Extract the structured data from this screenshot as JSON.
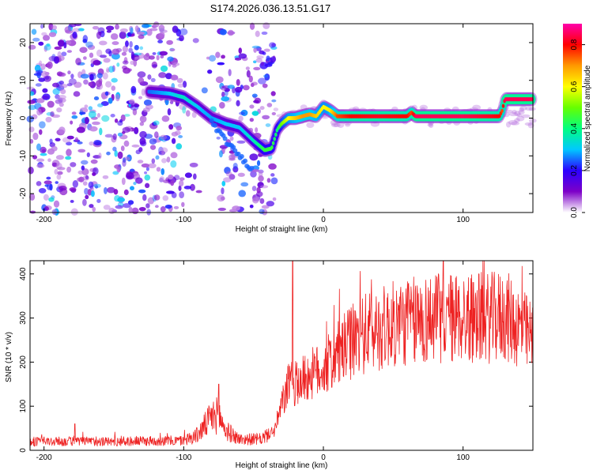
{
  "title": "S174.2026.036.13.51.G17",
  "chart_data": [
    {
      "type": "heatmap",
      "name": "spectrogram",
      "xlabel": "Height of straight line (km)",
      "ylabel": "Frequency (Hz)",
      "xlim": [
        -210,
        150
      ],
      "ylim": [
        -25,
        25
      ],
      "xticks": [
        -200,
        -100,
        0,
        100
      ],
      "yticks": [
        -20,
        -10,
        0,
        10,
        20
      ],
      "colorbar": {
        "label": "Normalized spectral amplitude",
        "range": [
          0,
          0.9
        ],
        "ticks": [
          0,
          0.2,
          0.4,
          0.6,
          0.8
        ],
        "colors": [
          "#ffffff",
          "#7d00c8",
          "#2b00ff",
          "#00c8ff",
          "#00ff80",
          "#66ff00",
          "#ffff00",
          "#ff9900",
          "#ff0000",
          "#ff00aa"
        ]
      },
      "ridge": {
        "x": [
          -125,
          -110,
          -100,
          -90,
          -80,
          -70,
          -60,
          -50,
          -42,
          -37,
          -33,
          -30,
          -25,
          -20,
          -15,
          -10,
          -5,
          0,
          5,
          10,
          20,
          40,
          60,
          63,
          66,
          80,
          100,
          120,
          126,
          128,
          130,
          140,
          150
        ],
        "y": [
          7,
          6.5,
          5.5,
          3,
          0,
          -1.5,
          -2.5,
          -6,
          -8.5,
          -8,
          -3,
          -1.5,
          0,
          0,
          0.5,
          1,
          0.5,
          3,
          2,
          0.5,
          0.5,
          0.5,
          0.5,
          1.5,
          0.5,
          0.5,
          0.5,
          0.5,
          0.5,
          2,
          5,
          5,
          5
        ],
        "amplitude": [
          0.25,
          0.3,
          0.35,
          0.3,
          0.28,
          0.3,
          0.3,
          0.35,
          0.45,
          0.45,
          0.4,
          0.5,
          0.6,
          0.65,
          0.7,
          0.7,
          0.65,
          0.6,
          0.62,
          0.75,
          0.8,
          0.82,
          0.8,
          0.75,
          0.85,
          0.85,
          0.85,
          0.82,
          0.8,
          0.75,
          0.85,
          0.85,
          0.85
        ]
      },
      "secondary_track": {
        "x": [
          -80,
          -70,
          -60,
          -50
        ],
        "y": [
          -1,
          -6,
          -10,
          -14
        ],
        "amplitude": 0.25
      },
      "noise_region": [
        -210,
        -35
      ]
    },
    {
      "type": "line",
      "name": "snr",
      "xlabel": "Height of straight line (km)",
      "ylabel": "SNR (10 * v/v)",
      "xlim": [
        -210,
        150
      ],
      "ylim": [
        0,
        430
      ],
      "xticks": [
        -200,
        -100,
        0,
        100
      ],
      "yticks": [
        0,
        100,
        200,
        300,
        400
      ],
      "color": "#ee2222",
      "envelope": {
        "x": [
          -210,
          -150,
          -100,
          -90,
          -80,
          -75,
          -70,
          -60,
          -45,
          -35,
          -30,
          -25,
          -20,
          -10,
          0,
          10,
          20,
          30,
          40,
          50,
          60,
          80,
          100,
          120,
          130,
          140,
          150
        ],
        "y": [
          20,
          20,
          22,
          35,
          75,
          80,
          45,
          25,
          25,
          45,
          100,
          150,
          150,
          170,
          185,
          215,
          245,
          265,
          275,
          285,
          290,
          300,
          300,
          300,
          305,
          280,
          250
        ]
      },
      "spikes": [
        {
          "x": -22,
          "y": 430
        },
        {
          "x": -75,
          "y": 150
        },
        {
          "x": -178,
          "y": 60
        }
      ]
    }
  ]
}
